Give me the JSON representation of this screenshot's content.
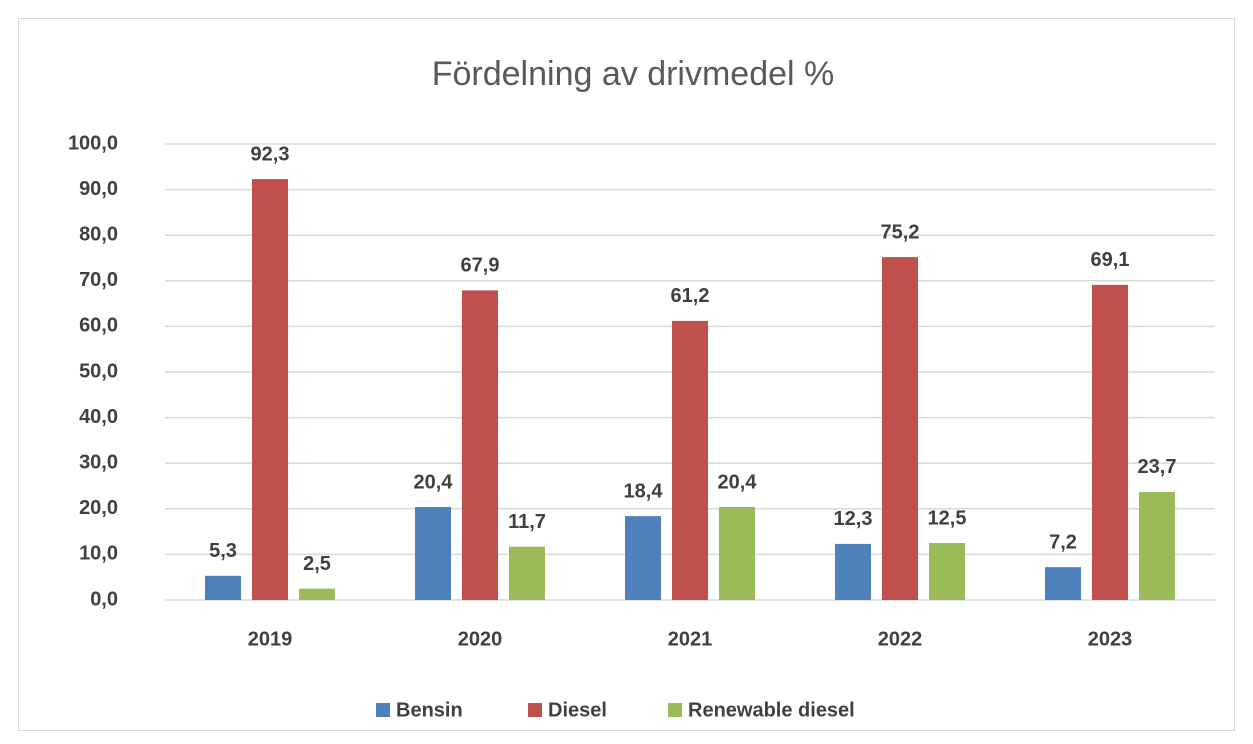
{
  "chart_data": {
    "type": "bar",
    "title": "Fördelning av drivmedel %",
    "categories": [
      "2019",
      "2020",
      "2021",
      "2022",
      "2023"
    ],
    "series": [
      {
        "name": "Bensin",
        "color": "#4f81bd",
        "values": [
          5.3,
          20.4,
          18.4,
          12.3,
          7.2
        ],
        "value_labels": [
          "5,3",
          "20,4",
          "18,4",
          "12,3",
          "7,2"
        ]
      },
      {
        "name": "Diesel",
        "color": "#c0504d",
        "values": [
          92.3,
          67.9,
          61.2,
          75.2,
          69.1
        ],
        "value_labels": [
          "92,3",
          "67,9",
          "61,2",
          "75,2",
          "69,1"
        ]
      },
      {
        "name": "Renewable diesel",
        "color": "#9bbb59",
        "values": [
          2.5,
          11.7,
          20.4,
          12.5,
          23.7
        ],
        "value_labels": [
          "2,5",
          "11,7",
          "20,4",
          "12,5",
          "23,7"
        ]
      }
    ],
    "ylim": [
      0,
      100
    ],
    "yticks": [
      {
        "value": 0,
        "label": "0,0"
      },
      {
        "value": 10,
        "label": "10,0"
      },
      {
        "value": 20,
        "label": "20,0"
      },
      {
        "value": 30,
        "label": "30,0"
      },
      {
        "value": 40,
        "label": "40,0"
      },
      {
        "value": 50,
        "label": "50,0"
      },
      {
        "value": 60,
        "label": "60,0"
      },
      {
        "value": 70,
        "label": "70,0"
      },
      {
        "value": 80,
        "label": "80,0"
      },
      {
        "value": 90,
        "label": "90,0"
      },
      {
        "value": 100,
        "label": "100,0"
      }
    ],
    "grid": true,
    "legend": "bottom"
  }
}
